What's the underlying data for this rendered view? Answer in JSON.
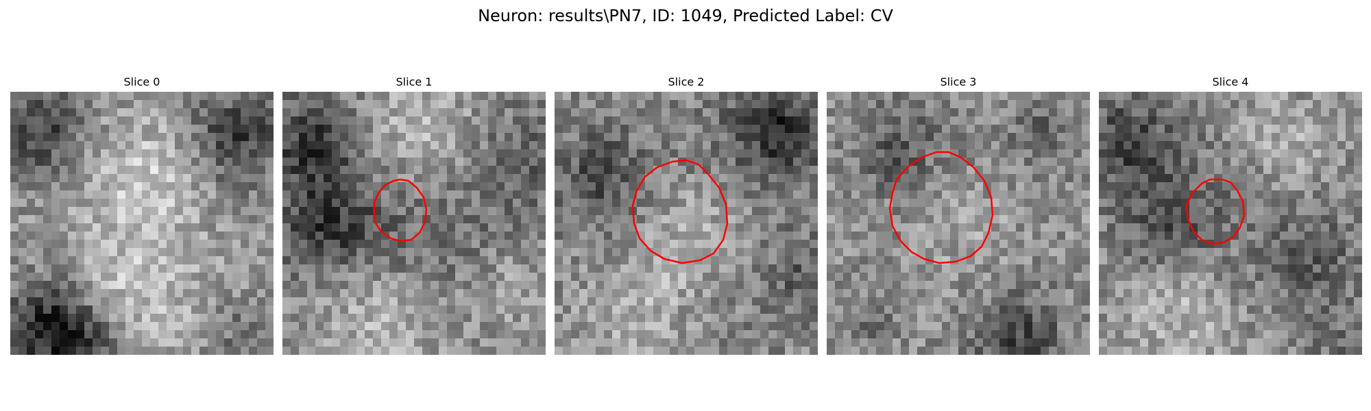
{
  "figure": {
    "title": "Neuron: results\\PN7, ID: 1049, Predicted Label: CV"
  },
  "panels": [
    {
      "title": "Slice 0",
      "has_outline": false
    },
    {
      "title": "Slice 1",
      "has_outline": true
    },
    {
      "title": "Slice 2",
      "has_outline": true
    },
    {
      "title": "Slice 3",
      "has_outline": true
    },
    {
      "title": "Slice 4",
      "has_outline": true
    }
  ],
  "colors": {
    "outline": "#ff0000",
    "colormap": "gray"
  }
}
